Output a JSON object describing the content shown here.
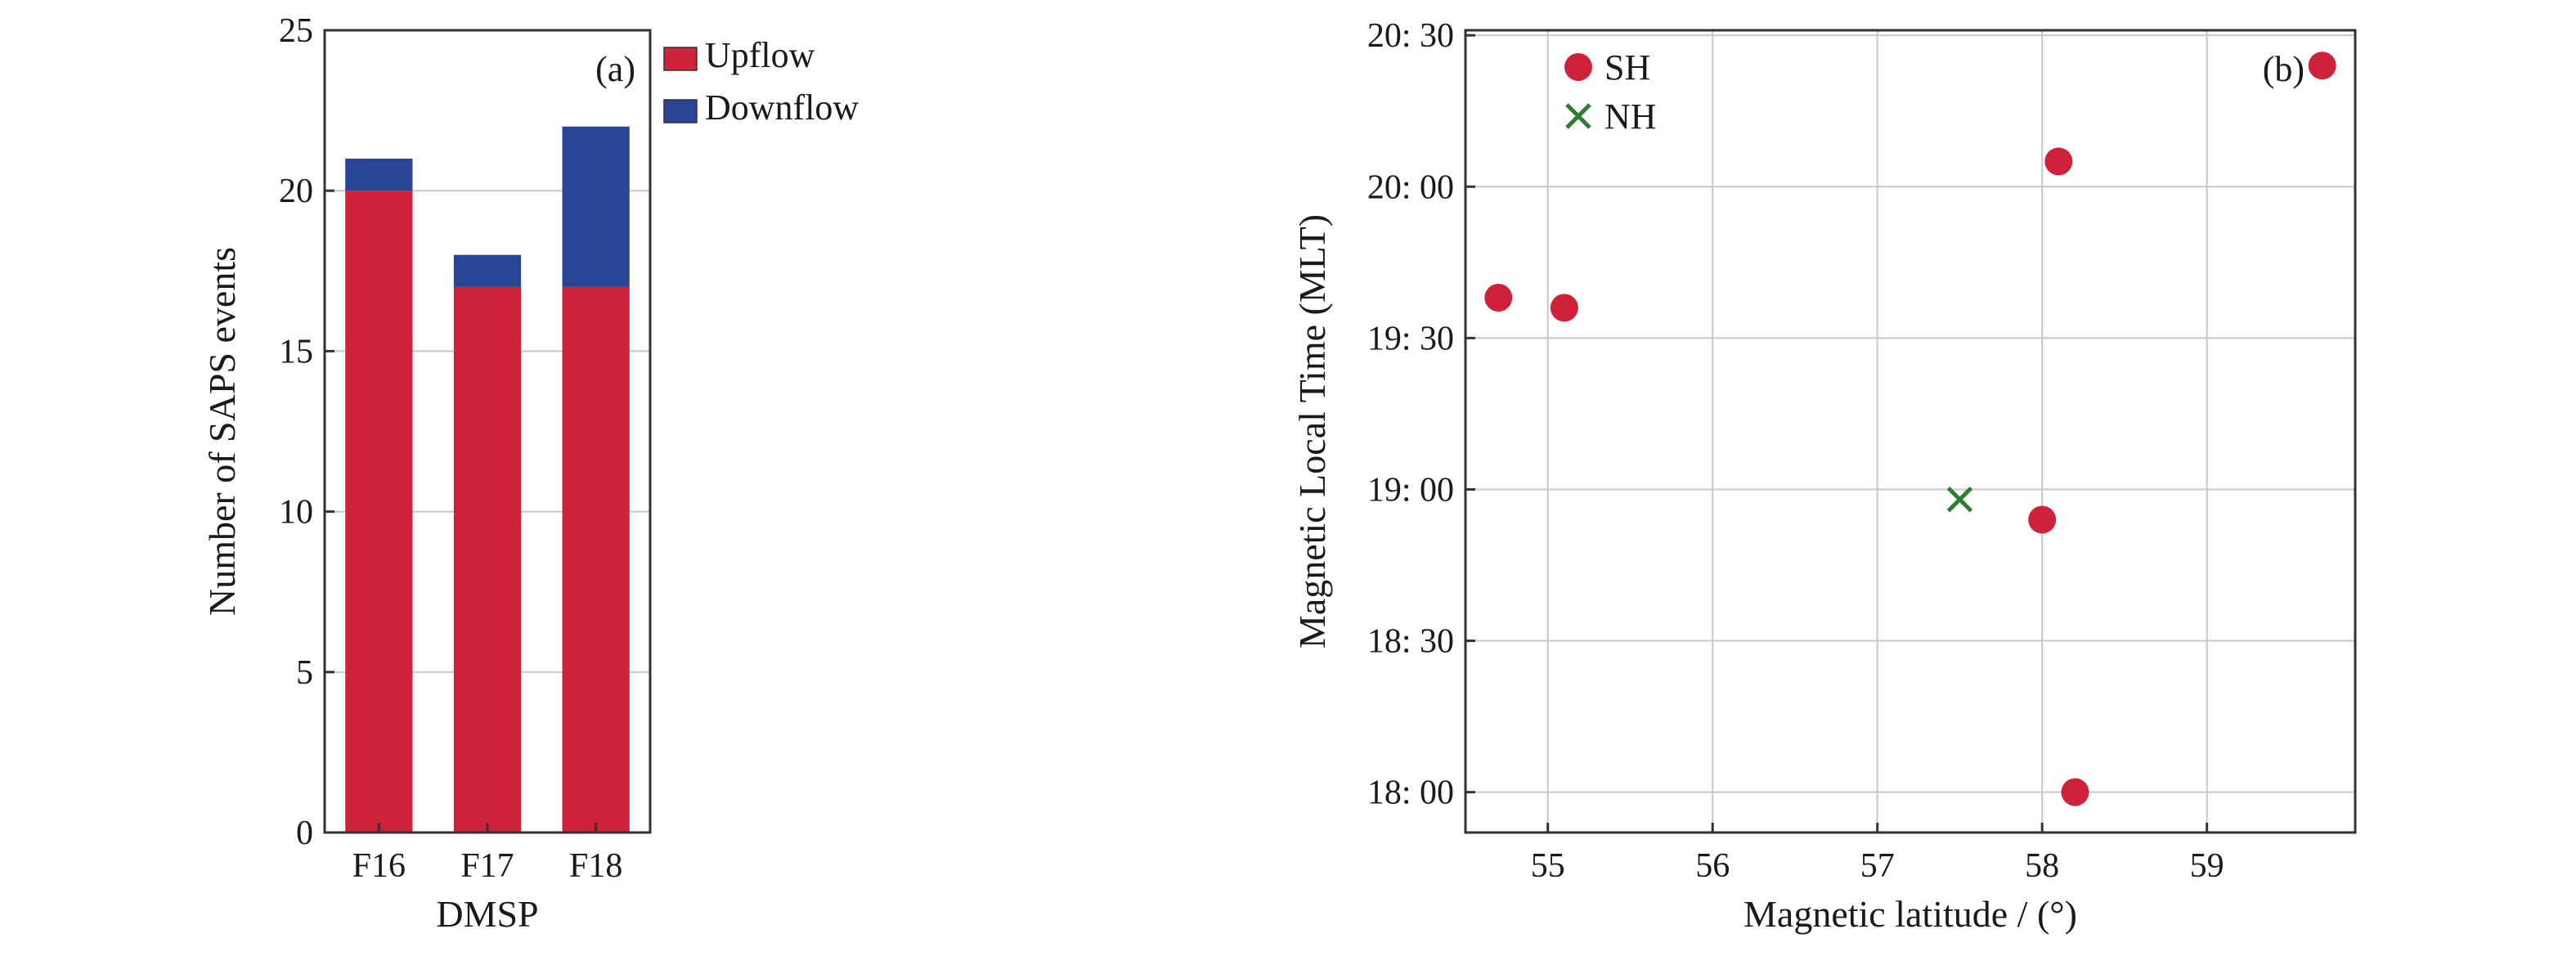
{
  "chart_data": [
    {
      "panel": "(a)",
      "type": "bar",
      "stacked": true,
      "categories": [
        "F16",
        "F17",
        "F18"
      ],
      "series": [
        {
          "name": "Upflow",
          "values": [
            20,
            17,
            17
          ],
          "color": "#d0213a"
        },
        {
          "name": "Downflow",
          "values": [
            1,
            1,
            5
          ],
          "color": "#2a4595"
        }
      ],
      "xlabel": "DMSP",
      "ylabel": "Number of SAPS events",
      "ylim": [
        0,
        25
      ],
      "yticks": [
        "0",
        "5",
        "10",
        "15",
        "20",
        "25"
      ],
      "grid": true,
      "legend": "top-center"
    },
    {
      "panel": "(b)",
      "type": "scatter",
      "series": [
        {
          "name": "SH",
          "marker": "circle",
          "color": "#d0213a",
          "points": [
            {
              "x": 54.7,
              "y": "19:38"
            },
            {
              "x": 55.1,
              "y": "19:36"
            },
            {
              "x": 58.1,
              "y": "20:05"
            },
            {
              "x": 58.0,
              "y": "18:54"
            },
            {
              "x": 58.2,
              "y": "18:00"
            },
            {
              "x": 59.7,
              "y": "20:24"
            }
          ]
        },
        {
          "name": "NH",
          "marker": "x",
          "color": "#2e7d32",
          "points": [
            {
              "x": 57.5,
              "y": "18:58"
            }
          ]
        }
      ],
      "xlabel": "Magnetic latitude / (°)",
      "ylabel": "Magnetic Local Time (MLT)",
      "xlim": [
        54.5,
        59.9
      ],
      "ylim": [
        "17:52",
        "20:31"
      ],
      "xticks": [
        "55",
        "56",
        "57",
        "58",
        "59"
      ],
      "yticks": [
        "18: 00",
        "18: 30",
        "19: 00",
        "19: 30",
        "20: 00",
        "20: 30"
      ],
      "grid": true,
      "legend": "top-left"
    }
  ]
}
